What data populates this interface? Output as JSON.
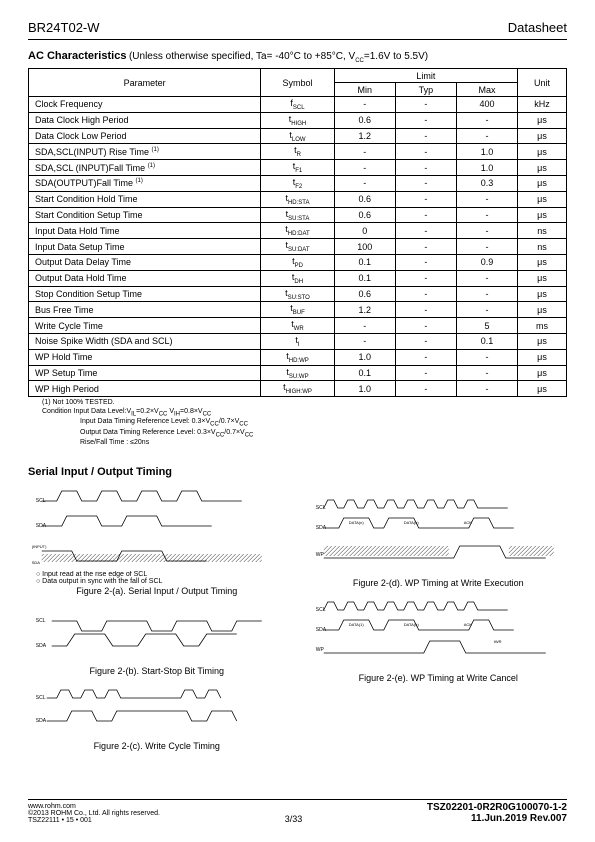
{
  "header": {
    "part": "BR24T02-W",
    "doctype": "Datasheet"
  },
  "ac": {
    "title": "AC Characteristics",
    "cond": " (Unless otherwise specified, Ta= -40°C to +85°C, V",
    "cond_sub": "CC",
    "cond2": "=1.6V to 5.5V)",
    "headers": {
      "param": "Parameter",
      "symbol": "Symbol",
      "limit": "Limit",
      "min": "Min",
      "typ": "Typ",
      "max": "Max",
      "unit": "Unit"
    },
    "rows": [
      {
        "param": "Clock Frequency",
        "sym": "f",
        "sub": "SCL",
        "min": "-",
        "typ": "-",
        "max": "400",
        "unit": "kHz"
      },
      {
        "param": "Data Clock High Period",
        "sym": "t",
        "sub": "HIGH",
        "min": "0.6",
        "typ": "-",
        "max": "-",
        "unit": "μs"
      },
      {
        "param": "Data Clock Low Period",
        "sym": "t",
        "sub": "LOW",
        "min": "1.2",
        "typ": "-",
        "max": "-",
        "unit": "μs"
      },
      {
        "param": "SDA,SCL(INPUT) Rise Time ",
        "sup": "(1)",
        "sym": "t",
        "sub": "R",
        "min": "-",
        "typ": "-",
        "max": "1.0",
        "unit": "μs"
      },
      {
        "param": "SDA,SCL (INPUT)Fall Time ",
        "sup": "(1)",
        "sym": "t",
        "sub": "F1",
        "min": "-",
        "typ": "-",
        "max": "1.0",
        "unit": "μs"
      },
      {
        "param": "SDA(OUTPUT)Fall Time ",
        "sup": "(1)",
        "sym": "t",
        "sub": "F2",
        "min": "-",
        "typ": "-",
        "max": "0.3",
        "unit": "μs"
      },
      {
        "param": "Start Condition Hold Time",
        "sym": "t",
        "sub": "HD:STA",
        "min": "0.6",
        "typ": "-",
        "max": "-",
        "unit": "μs"
      },
      {
        "param": "Start Condition Setup Time",
        "sym": "t",
        "sub": "SU:STA",
        "min": "0.6",
        "typ": "-",
        "max": "-",
        "unit": "μs"
      },
      {
        "param": "Input Data Hold Time",
        "sym": "t",
        "sub": "HD:DAT",
        "min": "0",
        "typ": "-",
        "max": "-",
        "unit": "ns"
      },
      {
        "param": "Input Data Setup Time",
        "sym": "t",
        "sub": "SU:DAT",
        "min": "100",
        "typ": "-",
        "max": "-",
        "unit": "ns"
      },
      {
        "param": "Output Data Delay Time",
        "sym": "t",
        "sub": "PD",
        "min": "0.1",
        "typ": "-",
        "max": "0.9",
        "unit": "μs"
      },
      {
        "param": "Output Data Hold Time",
        "sym": "t",
        "sub": "DH",
        "min": "0.1",
        "typ": "-",
        "max": "-",
        "unit": "μs"
      },
      {
        "param": "Stop Condition Setup Time",
        "sym": "t",
        "sub": "SU:STO",
        "min": "0.6",
        "typ": "-",
        "max": "-",
        "unit": "μs"
      },
      {
        "param": "Bus Free Time",
        "sym": "t",
        "sub": "BUF",
        "min": "1.2",
        "typ": "-",
        "max": "-",
        "unit": "μs"
      },
      {
        "param": "Write Cycle Time",
        "sym": "t",
        "sub": "WR",
        "min": "-",
        "typ": "-",
        "max": "5",
        "unit": "ms"
      },
      {
        "param": "Noise Spike Width (SDA and SCL)",
        "sym": "t",
        "sub": "I",
        "min": "-",
        "typ": "-",
        "max": "0.1",
        "unit": "μs"
      },
      {
        "param": "WP Hold Time",
        "sym": "t",
        "sub": "HD:WP",
        "min": "1.0",
        "typ": "-",
        "max": "-",
        "unit": "μs"
      },
      {
        "param": "WP Setup Time",
        "sym": "t",
        "sub": "SU:WP",
        "min": "0.1",
        "typ": "-",
        "max": "-",
        "unit": "μs"
      },
      {
        "param": "WP High Period",
        "sym": "t",
        "sub": "HIGH:WP",
        "min": "1.0",
        "typ": "-",
        "max": "-",
        "unit": "μs"
      }
    ]
  },
  "notes": {
    "n1": "(1)  Not 100% TESTED.",
    "n2": "Condition   Input Data Level:V",
    "n2a": "IL",
    "n2b": "=0.2×V",
    "n2c": "CC",
    "n2d": " V",
    "n2e": "IH",
    "n2f": "=0.8×V",
    "n2g": "CC",
    "n3": "Input Data Timing Reference Level: 0.3×V",
    "n3a": "CC",
    "n3b": "/0.7×V",
    "n3c": "CC",
    "n4": "Output Data Timing Reference Level: 0.3×V",
    "n4a": "CC",
    "n4b": "/0.7×V",
    "n4c": "CC",
    "n5": "Rise/Fall Time : ≤20ns"
  },
  "timing": {
    "title": "Serial Input / Output Timing",
    "note1": "○ Input read at the rise edge of SCL",
    "note2": "○ Data output in sync with the fall of SCL",
    "cap_a": "Figure 2-(a). Serial Input / Output Timing",
    "cap_b": "Figure 2-(b). Start-Stop Bit Timing",
    "cap_c": "Figure 2-(c). Write Cycle Timing",
    "cap_d": "Figure 2-(d). WP Timing at Write Execution",
    "cap_e": "Figure 2-(e). WP Timing at Write Cancel"
  },
  "footer": {
    "url": "www.rohm.com",
    "copy": "©2013 ROHM Co., Ltd. All rights reserved.",
    "tsz": "TSZ22111 • 15 • 001",
    "page": "3/33",
    "doc": "TSZ02201-0R2R0G100070-1-2",
    "date": "11.Jun.2019 Rev.007"
  }
}
